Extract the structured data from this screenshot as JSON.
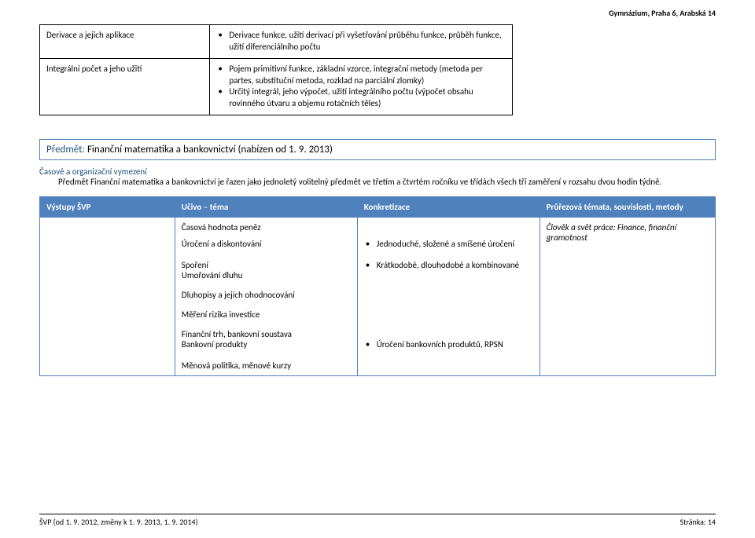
{
  "header": {
    "school": "Gymnázium, Praha 6, Arabská 14"
  },
  "t1": {
    "r0": {
      "left": "Derivace a jejich aplikace",
      "b0": "Derivace funkce, užití derivací při vyšetřování průběhu funkce, průběh funkce, užití diferenciálního počtu"
    },
    "r1": {
      "left": "Integrální počet a jeho užití",
      "b0": "Pojem primitivní funkce, základní vzorce, integrační metody (metoda per partes, substituční metoda, rozklad na parciální zlomky)",
      "b1": "Určitý integrál, jeho výpočet, užití integrálního počtu (výpočet obsahu rovinného útvaru a objemu rotačních těles)"
    }
  },
  "subject": {
    "label": "Předmět: ",
    "name": "Finanční matematika a bankovnictví",
    "suffix": " (nabízen od 1. 9. 2013)"
  },
  "intro": {
    "label": "Časové a organizační vymezení",
    "body": "Předmět Finanční matematika a bankovnictví je řazen jako jednoletý volitelný předmět ve třetím a čtvrtém ročníku ve třídách všech tří zaměření v rozsahu dvou hodin týdně."
  },
  "t2": {
    "head": {
      "c0": "Výstupy ŠVP",
      "c1": "Učivo – téma",
      "c2": "Konkretizace",
      "c3": "Průřezová témata, souvislosti, metody"
    },
    "widths": {
      "c0": "20%",
      "c1": "27%",
      "c2": "27%",
      "c3": "26%"
    },
    "row0": {
      "c1a": "Časová hodnota peněz",
      "c1b": "Úročení a diskontování",
      "c2b": "Jednoduché, složené a smíšené úročení",
      "c3": "Člověk a svět práce: Finance, finanční gramotnost"
    },
    "row1": {
      "c1a": "Spoření",
      "c1b": "Umořování dluhu",
      "c2b": "Krátkodobé, dlouhodobé a kombinované"
    },
    "row2": {
      "c1": "Dluhopisy a jejich ohodnocování"
    },
    "row3": {
      "c1": "Měření rizika investice"
    },
    "row4": {
      "c1a": "Finanční trh, bankovní soustava",
      "c1b": "Bankovní produkty",
      "c2b": "Úročení bankovních produktů, RPSN"
    },
    "row5": {
      "c1": "Měnová politika, měnové kurzy"
    }
  },
  "footer": {
    "left": "ŠVP (od 1. 9. 2012, změny k 1. 9. 2013, 1. 9. 2014)",
    "right": "Stránka: 14"
  }
}
